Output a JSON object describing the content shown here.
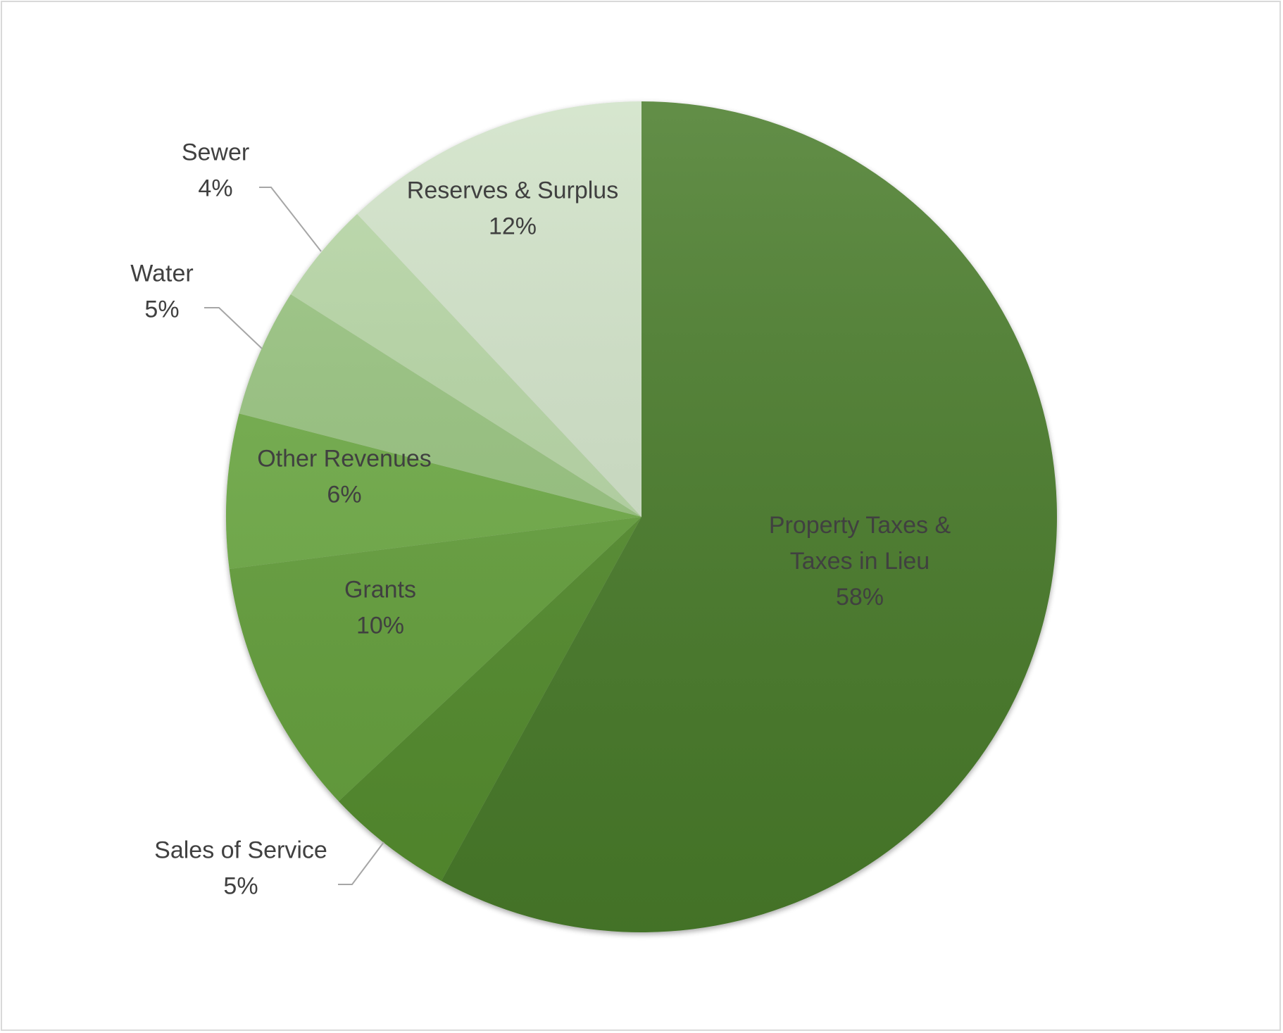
{
  "chart_data": {
    "type": "pie",
    "title": "",
    "slices": [
      {
        "name": "Property Taxes & Taxes in Lieu",
        "label_lines": [
          "Property Taxes &",
          "Taxes in Lieu"
        ],
        "value": 58,
        "value_label": "58%",
        "color": "#4a7c2c"
      },
      {
        "name": "Sales of Service",
        "label_lines": [
          "Sales of Service"
        ],
        "value": 5,
        "value_label": "5%",
        "color": "#548e2f"
      },
      {
        "name": "Grants",
        "label_lines": [
          "Grants"
        ],
        "value": 10,
        "value_label": "10%",
        "color": "#66a23e"
      },
      {
        "name": "Other Revenues",
        "label_lines": [
          "Other Revenues"
        ],
        "value": 6,
        "value_label": "6%",
        "color": "#70ad47"
      },
      {
        "name": "Water",
        "label_lines": [
          "Water"
        ],
        "value": 5,
        "value_label": "5%",
        "color": "#98c47f"
      },
      {
        "name": "Sewer",
        "label_lines": [
          "Sewer"
        ],
        "value": 4,
        "value_label": "4%",
        "color": "#b6d6a4"
      },
      {
        "name": "Reserves & Surplus",
        "label_lines": [
          "Reserves & Surplus"
        ],
        "value": 12,
        "value_label": "12%",
        "color": "#d0e2c7"
      }
    ],
    "legend": "none",
    "data_labels": "category name and percentage"
  }
}
